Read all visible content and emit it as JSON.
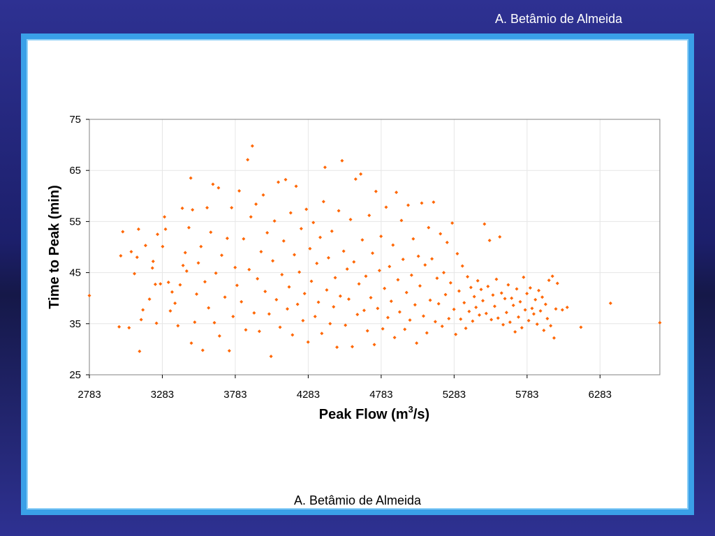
{
  "header": {
    "author": "A. Betâmio de Almeida"
  },
  "footer": {
    "author": "A. Betâmio de Almeida"
  },
  "colors": {
    "background": "#2e3192",
    "frame": "#3aa0e8",
    "point": "#ff6600"
  },
  "chart_data": {
    "type": "scatter",
    "title": "",
    "xlabel_main": "Peak Flow (m",
    "xlabel_sup": "3",
    "xlabel_tail": "/s)",
    "ylabel": "Time to Peak (min)",
    "xlim": [
      2783,
      6693
    ],
    "ylim": [
      25,
      75
    ],
    "x_ticks": [
      2783,
      3283,
      3783,
      4283,
      4783,
      5283,
      5783,
      6283
    ],
    "x_tick_labels": [
      "2783",
      "3283",
      "3783",
      "4283",
      "4783",
      "5283",
      "5783",
      "6283"
    ],
    "y_ticks": [
      25,
      35,
      45,
      55,
      65,
      75
    ],
    "y_tick_labels": [
      "25",
      "35",
      "45",
      "55",
      "65",
      "75"
    ],
    "grid": true,
    "legend": "none",
    "series": [
      {
        "points": [
          [
            2783,
            40.5
          ],
          [
            2987,
            34.4
          ],
          [
            2998,
            48.3
          ],
          [
            3012,
            53.0
          ],
          [
            3055,
            34.2
          ],
          [
            3070,
            49.1
          ],
          [
            3092,
            44.8
          ],
          [
            3110,
            48.0
          ],
          [
            3120,
            53.5
          ],
          [
            3127,
            29.6
          ],
          [
            3138,
            35.8
          ],
          [
            3150,
            37.7
          ],
          [
            3168,
            50.3
          ],
          [
            3195,
            39.8
          ],
          [
            3215,
            45.9
          ],
          [
            3220,
            47.2
          ],
          [
            3235,
            42.7
          ],
          [
            3243,
            35.1
          ],
          [
            3250,
            52.5
          ],
          [
            3270,
            42.8
          ],
          [
            3285,
            50.1
          ],
          [
            3298,
            55.9
          ],
          [
            3305,
            53.5
          ],
          [
            3325,
            43.1
          ],
          [
            3338,
            37.5
          ],
          [
            3350,
            41.2
          ],
          [
            3370,
            39.0
          ],
          [
            3390,
            34.6
          ],
          [
            3405,
            42.6
          ],
          [
            3420,
            57.6
          ],
          [
            3425,
            46.4
          ],
          [
            3440,
            48.9
          ],
          [
            3450,
            45.3
          ],
          [
            3465,
            53.8
          ],
          [
            3478,
            63.5
          ],
          [
            3482,
            31.2
          ],
          [
            3490,
            57.3
          ],
          [
            3505,
            35.3
          ],
          [
            3518,
            40.8
          ],
          [
            3530,
            46.9
          ],
          [
            3548,
            50.1
          ],
          [
            3560,
            29.8
          ],
          [
            3575,
            43.2
          ],
          [
            3590,
            57.7
          ],
          [
            3600,
            38.1
          ],
          [
            3615,
            52.9
          ],
          [
            3630,
            62.3
          ],
          [
            3640,
            35.2
          ],
          [
            3650,
            44.9
          ],
          [
            3668,
            61.6
          ],
          [
            3675,
            32.6
          ],
          [
            3690,
            48.4
          ],
          [
            3712,
            40.2
          ],
          [
            3728,
            51.7
          ],
          [
            3742,
            29.7
          ],
          [
            3758,
            57.7
          ],
          [
            3768,
            36.4
          ],
          [
            3782,
            46.0
          ],
          [
            3795,
            42.5
          ],
          [
            3810,
            61.0
          ],
          [
            3825,
            39.3
          ],
          [
            3840,
            51.6
          ],
          [
            3855,
            33.8
          ],
          [
            3868,
            67.1
          ],
          [
            3878,
            45.6
          ],
          [
            3890,
            55.9
          ],
          [
            3900,
            69.8
          ],
          [
            3912,
            37.1
          ],
          [
            3925,
            58.4
          ],
          [
            3935,
            43.8
          ],
          [
            3948,
            33.5
          ],
          [
            3960,
            49.1
          ],
          [
            3975,
            60.2
          ],
          [
            3988,
            41.3
          ],
          [
            4002,
            52.8
          ],
          [
            4015,
            36.9
          ],
          [
            4028,
            28.6
          ],
          [
            4040,
            47.3
          ],
          [
            4052,
            55.1
          ],
          [
            4065,
            39.7
          ],
          [
            4078,
            62.7
          ],
          [
            4090,
            34.3
          ],
          [
            4103,
            44.6
          ],
          [
            4115,
            51.2
          ],
          [
            4128,
            63.2
          ],
          [
            4140,
            37.9
          ],
          [
            4152,
            42.2
          ],
          [
            4163,
            56.7
          ],
          [
            4175,
            32.8
          ],
          [
            4188,
            48.5
          ],
          [
            4200,
            61.9
          ],
          [
            4210,
            38.8
          ],
          [
            4222,
            45.1
          ],
          [
            4235,
            53.6
          ],
          [
            4247,
            35.6
          ],
          [
            4258,
            40.9
          ],
          [
            4270,
            57.4
          ],
          [
            4282,
            31.4
          ],
          [
            4295,
            49.7
          ],
          [
            4305,
            43.3
          ],
          [
            4318,
            54.8
          ],
          [
            4330,
            36.4
          ],
          [
            4342,
            46.8
          ],
          [
            4353,
            39.2
          ],
          [
            4365,
            51.9
          ],
          [
            4376,
            33.1
          ],
          [
            4388,
            58.9
          ],
          [
            4398,
            65.6
          ],
          [
            4410,
            41.6
          ],
          [
            4422,
            47.9
          ],
          [
            4433,
            35.0
          ],
          [
            4445,
            53.1
          ],
          [
            4457,
            38.3
          ],
          [
            4468,
            44.0
          ],
          [
            4480,
            30.4
          ],
          [
            4492,
            57.1
          ],
          [
            4503,
            40.4
          ],
          [
            4515,
            66.9
          ],
          [
            4526,
            49.2
          ],
          [
            4538,
            34.7
          ],
          [
            4550,
            45.7
          ],
          [
            4561,
            39.8
          ],
          [
            4573,
            55.4
          ],
          [
            4585,
            30.5
          ],
          [
            4596,
            47.1
          ],
          [
            4608,
            63.3
          ],
          [
            4620,
            36.8
          ],
          [
            4631,
            42.8
          ],
          [
            4643,
            64.3
          ],
          [
            4654,
            51.4
          ],
          [
            4666,
            37.6
          ],
          [
            4678,
            44.3
          ],
          [
            4689,
            33.6
          ],
          [
            4701,
            56.2
          ],
          [
            4712,
            40.1
          ],
          [
            4724,
            48.8
          ],
          [
            4736,
            30.9
          ],
          [
            4747,
            60.9
          ],
          [
            4759,
            38.0
          ],
          [
            4771,
            45.4
          ],
          [
            4782,
            52.1
          ],
          [
            4794,
            34.0
          ],
          [
            4806,
            41.9
          ],
          [
            4817,
            57.8
          ],
          [
            4829,
            36.2
          ],
          [
            4840,
            46.2
          ],
          [
            4852,
            39.4
          ],
          [
            4864,
            50.4
          ],
          [
            4875,
            32.3
          ],
          [
            4887,
            60.7
          ],
          [
            4898,
            43.6
          ],
          [
            4910,
            37.3
          ],
          [
            4922,
            55.2
          ],
          [
            4933,
            47.6
          ],
          [
            4945,
            33.9
          ],
          [
            4957,
            41.1
          ],
          [
            4968,
            58.2
          ],
          [
            4980,
            35.7
          ],
          [
            4991,
            44.5
          ],
          [
            5003,
            51.6
          ],
          [
            5015,
            38.7
          ],
          [
            5026,
            31.2
          ],
          [
            5038,
            48.2
          ],
          [
            5049,
            42.4
          ],
          [
            5061,
            58.6
          ],
          [
            5073,
            36.5
          ],
          [
            5084,
            46.5
          ],
          [
            5096,
            33.2
          ],
          [
            5108,
            53.8
          ],
          [
            5119,
            39.6
          ],
          [
            5131,
            47.7
          ],
          [
            5142,
            58.8
          ],
          [
            5154,
            35.4
          ],
          [
            5166,
            43.9
          ],
          [
            5177,
            38.9
          ],
          [
            5189,
            52.6
          ],
          [
            5201,
            34.5
          ],
          [
            5212,
            45.0
          ],
          [
            5224,
            40.7
          ],
          [
            5235,
            50.9
          ],
          [
            5247,
            36.0
          ],
          [
            5259,
            43.0
          ],
          [
            5270,
            54.7
          ],
          [
            5282,
            37.8
          ],
          [
            5294,
            32.9
          ],
          [
            5305,
            48.7
          ],
          [
            5317,
            41.4
          ],
          [
            5328,
            35.9
          ],
          [
            5340,
            46.3
          ],
          [
            5352,
            39.1
          ],
          [
            5363,
            34.1
          ],
          [
            5375,
            44.2
          ],
          [
            5386,
            37.4
          ],
          [
            5398,
            42.1
          ],
          [
            5410,
            35.5
          ],
          [
            5421,
            40.3
          ],
          [
            5433,
            38.2
          ],
          [
            5445,
            43.4
          ],
          [
            5456,
            36.7
          ],
          [
            5468,
            41.7
          ],
          [
            5480,
            39.5
          ],
          [
            5491,
            54.5
          ],
          [
            5503,
            37.0
          ],
          [
            5515,
            42.3
          ],
          [
            5526,
            51.3
          ],
          [
            5538,
            35.8
          ],
          [
            5549,
            40.6
          ],
          [
            5561,
            38.4
          ],
          [
            5573,
            43.7
          ],
          [
            5584,
            36.1
          ],
          [
            5596,
            52.0
          ],
          [
            5608,
            41.0
          ],
          [
            5619,
            34.8
          ],
          [
            5631,
            39.9
          ],
          [
            5642,
            37.2
          ],
          [
            5654,
            42.6
          ],
          [
            5666,
            35.3
          ],
          [
            5677,
            40.0
          ],
          [
            5689,
            38.6
          ],
          [
            5701,
            33.4
          ],
          [
            5712,
            41.8
          ],
          [
            5724,
            36.3
          ],
          [
            5736,
            39.3
          ],
          [
            5747,
            34.2
          ],
          [
            5759,
            44.1
          ],
          [
            5770,
            37.7
          ],
          [
            5782,
            40.9
          ],
          [
            5794,
            35.6
          ],
          [
            5805,
            42.0
          ],
          [
            5817,
            38.0
          ],
          [
            5829,
            36.9
          ],
          [
            5840,
            39.7
          ],
          [
            5852,
            34.9
          ],
          [
            5863,
            41.5
          ],
          [
            5875,
            37.5
          ],
          [
            5887,
            40.2
          ],
          [
            5898,
            33.7
          ],
          [
            5910,
            38.8
          ],
          [
            5922,
            36.0
          ],
          [
            5933,
            43.5
          ],
          [
            5945,
            34.6
          ],
          [
            5957,
            44.3
          ],
          [
            5968,
            32.2
          ],
          [
            5980,
            37.9
          ],
          [
            5991,
            42.9
          ],
          [
            6025,
            37.7
          ],
          [
            6058,
            38.2
          ],
          [
            6152,
            34.3
          ],
          [
            6355,
            39.0
          ],
          [
            6693,
            35.2
          ]
        ]
      }
    ]
  }
}
